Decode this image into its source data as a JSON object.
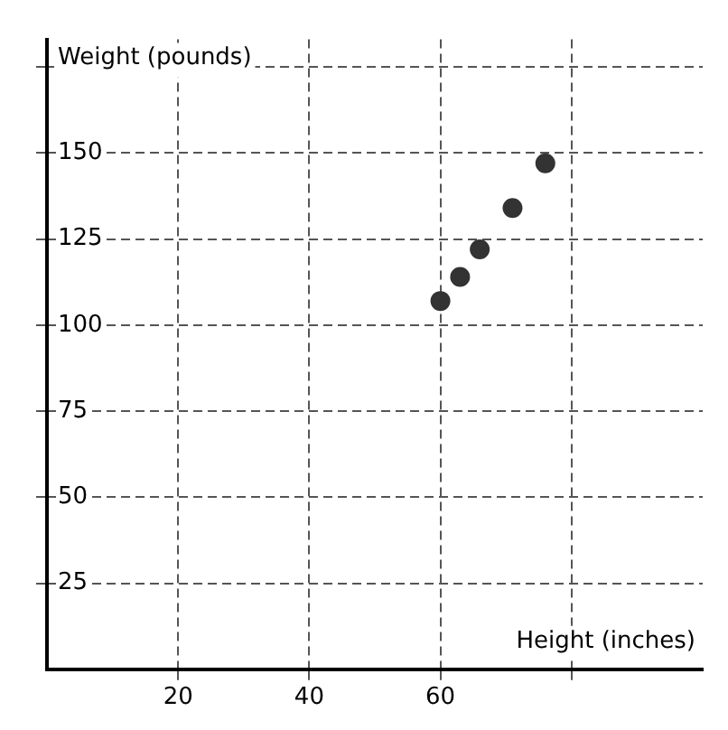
{
  "chart_data": {
    "type": "scatter",
    "xlabel": "Height (inches)",
    "ylabel": "Weight (pounds)",
    "x": [
      60,
      63,
      66,
      71,
      76
    ],
    "values": [
      107,
      114,
      122,
      134,
      147
    ],
    "color": "#333333",
    "marker": "circle",
    "grid": true,
    "xlim": [
      0,
      100
    ],
    "ylim": [
      0,
      183
    ],
    "xticks": [
      20,
      40,
      60,
      {
        "value": 80,
        "label": null
      }
    ],
    "yticks": [
      25,
      50,
      75,
      100,
      125,
      150,
      {
        "value": 175,
        "label": null
      }
    ]
  }
}
